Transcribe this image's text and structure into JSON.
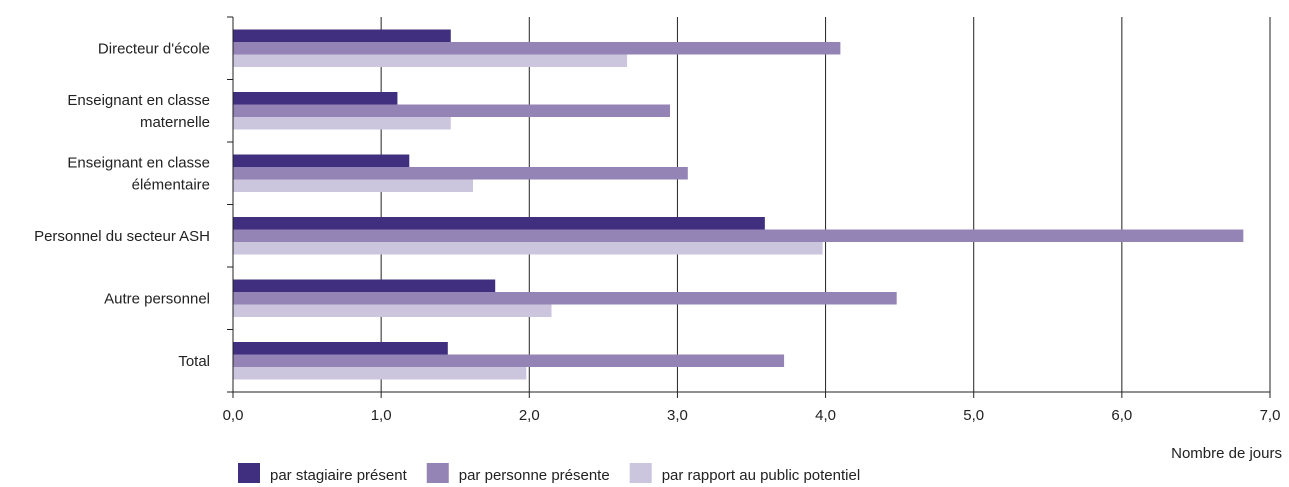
{
  "chart_data": {
    "type": "bar",
    "orientation": "horizontal",
    "xlabel": "Nombre de jours",
    "xlim": [
      0,
      7
    ],
    "x_ticks": [
      "0,0",
      "1,0",
      "2,0",
      "3,0",
      "4,0",
      "5,0",
      "6,0",
      "7,0"
    ],
    "grid": "vertical",
    "legend_position": "bottom-left",
    "categories": [
      [
        "Directeur d'école"
      ],
      [
        "Enseignant en classe",
        "maternelle"
      ],
      [
        "Enseignant en classe",
        "élémentaire"
      ],
      [
        "Personnel du secteur ASH"
      ],
      [
        "Autre personnel"
      ],
      [
        "Total"
      ]
    ],
    "series": [
      {
        "name": "par stagiaire présent",
        "color": "#3f2f7e",
        "values": [
          1.47,
          1.11,
          1.19,
          3.59,
          1.77,
          1.45
        ]
      },
      {
        "name": "par personne présente",
        "color": "#9483b5",
        "values": [
          4.1,
          2.95,
          3.07,
          6.82,
          4.48,
          3.72
        ]
      },
      {
        "name": "par rapport au public potentiel",
        "color": "#cbc5de",
        "values": [
          2.66,
          1.47,
          1.62,
          3.98,
          2.15,
          1.98
        ]
      }
    ]
  }
}
